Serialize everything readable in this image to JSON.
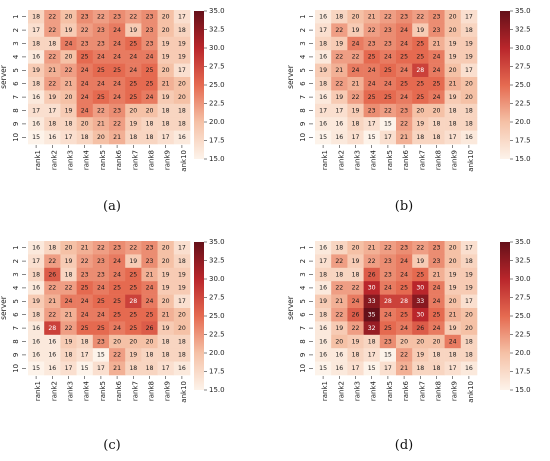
{
  "chart_data": [
    {
      "type": "heatmap",
      "panel_label": "(a)",
      "ylabel": "server",
      "x_ticks": [
        "rank1",
        "rank2",
        "rank3",
        "rank4",
        "rank5",
        "rank6",
        "rank7",
        "rank8",
        "rank9",
        "ank10"
      ],
      "y_ticks": [
        "1",
        "2",
        "3",
        "4",
        "5",
        "6",
        "7",
        "8",
        "9",
        "10"
      ],
      "colorbar_ticks": [
        "35.0",
        "32.5",
        "30.0",
        "27.5",
        "25.0",
        "22.5",
        "20.0",
        "17.5",
        "15.0"
      ],
      "vmin": 15,
      "vmax": 35,
      "values": [
        [
          18,
          22,
          20,
          23,
          22,
          23,
          22,
          23,
          20,
          17
        ],
        [
          17,
          22,
          19,
          22,
          23,
          24,
          19,
          23,
          20,
          18
        ],
        [
          18,
          18,
          24,
          23,
          23,
          24,
          25,
          23,
          19,
          19
        ],
        [
          16,
          22,
          20,
          25,
          24,
          24,
          24,
          24,
          19,
          19
        ],
        [
          19,
          21,
          22,
          24,
          25,
          25,
          24,
          25,
          20,
          17
        ],
        [
          18,
          22,
          21,
          24,
          24,
          24,
          25,
          25,
          21,
          20
        ],
        [
          16,
          19,
          20,
          24,
          25,
          24,
          25,
          24,
          19,
          20
        ],
        [
          17,
          17,
          19,
          24,
          22,
          23,
          20,
          20,
          18,
          18
        ],
        [
          16,
          18,
          18,
          20,
          21,
          22,
          19,
          18,
          18,
          18
        ],
        [
          15,
          16,
          17,
          18,
          20,
          21,
          18,
          18,
          17,
          16
        ]
      ]
    },
    {
      "type": "heatmap",
      "panel_label": "(b)",
      "ylabel": "server",
      "x_ticks": [
        "rank1",
        "rank2",
        "rank3",
        "rank4",
        "rank5",
        "rank6",
        "rank7",
        "rank8",
        "rank9",
        "ank10"
      ],
      "y_ticks": [
        "1",
        "2",
        "3",
        "4",
        "5",
        "6",
        "7",
        "8",
        "9",
        "10"
      ],
      "colorbar_ticks": [
        "35.0",
        "32.5",
        "30.0",
        "27.5",
        "25.0",
        "22.5",
        "20.0",
        "17.5",
        "15.0"
      ],
      "vmin": 15,
      "vmax": 35,
      "values": [
        [
          16,
          18,
          20,
          21,
          22,
          23,
          22,
          23,
          20,
          17
        ],
        [
          17,
          22,
          19,
          22,
          23,
          24,
          19,
          23,
          20,
          18
        ],
        [
          18,
          19,
          24,
          23,
          23,
          24,
          25,
          21,
          19,
          19
        ],
        [
          16,
          22,
          22,
          25,
          24,
          25,
          25,
          24,
          19,
          19
        ],
        [
          19,
          21,
          24,
          24,
          25,
          24,
          28,
          24,
          20,
          17
        ],
        [
          18,
          22,
          21,
          24,
          24,
          25,
          25,
          25,
          21,
          20
        ],
        [
          16,
          19,
          22,
          25,
          25,
          24,
          25,
          24,
          19,
          20
        ],
        [
          17,
          17,
          19,
          23,
          22,
          23,
          20,
          20,
          18,
          18
        ],
        [
          16,
          16,
          18,
          17,
          15,
          22,
          19,
          18,
          18,
          18
        ],
        [
          15,
          16,
          17,
          15,
          17,
          21,
          18,
          18,
          17,
          16
        ]
      ]
    },
    {
      "type": "heatmap",
      "panel_label": "(c)",
      "ylabel": "server",
      "x_ticks": [
        "rank1",
        "rank2",
        "rank3",
        "rank4",
        "rank5",
        "rank6",
        "rank7",
        "rank8",
        "rank9",
        "ank10"
      ],
      "y_ticks": [
        "1",
        "2",
        "3",
        "4",
        "5",
        "6",
        "7",
        "8",
        "9",
        "10"
      ],
      "colorbar_ticks": [
        "35.0",
        "32.5",
        "30.0",
        "27.5",
        "25.0",
        "22.5",
        "20.0",
        "17.5",
        "15.0"
      ],
      "vmin": 15,
      "vmax": 35,
      "values": [
        [
          16,
          18,
          20,
          21,
          22,
          23,
          22,
          23,
          20,
          17
        ],
        [
          17,
          22,
          19,
          22,
          23,
          24,
          19,
          23,
          20,
          18
        ],
        [
          18,
          26,
          18,
          23,
          23,
          24,
          25,
          21,
          19,
          19
        ],
        [
          16,
          22,
          22,
          25,
          24,
          25,
          25,
          24,
          19,
          19
        ],
        [
          19,
          21,
          24,
          24,
          25,
          25,
          28,
          24,
          20,
          17
        ],
        [
          18,
          22,
          21,
          24,
          24,
          25,
          25,
          25,
          21,
          20
        ],
        [
          16,
          28,
          22,
          25,
          25,
          24,
          25,
          26,
          19,
          20
        ],
        [
          16,
          16,
          19,
          18,
          23,
          20,
          20,
          20,
          18,
          18
        ],
        [
          16,
          16,
          18,
          17,
          15,
          22,
          19,
          18,
          18,
          18
        ],
        [
          15,
          16,
          17,
          15,
          17,
          21,
          18,
          18,
          17,
          16
        ]
      ]
    },
    {
      "type": "heatmap",
      "panel_label": "(d)",
      "ylabel": "server",
      "x_ticks": [
        "rank1",
        "rank2",
        "rank3",
        "rank4",
        "rank5",
        "rank6",
        "rank7",
        "rank8",
        "rank9",
        "ank10"
      ],
      "y_ticks": [
        "1",
        "2",
        "3",
        "4",
        "5",
        "6",
        "7",
        "8",
        "9",
        "10"
      ],
      "colorbar_ticks": [
        "35.0",
        "32.5",
        "30.0",
        "27.5",
        "25.0",
        "22.5",
        "20.0",
        "17.5",
        "15.0"
      ],
      "vmin": 15,
      "vmax": 35,
      "values": [
        [
          16,
          18,
          20,
          21,
          22,
          23,
          22,
          23,
          20,
          17
        ],
        [
          17,
          22,
          19,
          22,
          23,
          24,
          19,
          23,
          20,
          18
        ],
        [
          18,
          18,
          18,
          26,
          23,
          24,
          25,
          21,
          19,
          19
        ],
        [
          16,
          22,
          22,
          30,
          24,
          25,
          30,
          24,
          19,
          19
        ],
        [
          19,
          21,
          24,
          33,
          28,
          28,
          33,
          24,
          20,
          17
        ],
        [
          18,
          22,
          26,
          35,
          24,
          25,
          30,
          25,
          21,
          20
        ],
        [
          16,
          19,
          22,
          32,
          25,
          24,
          26,
          24,
          19,
          20
        ],
        [
          16,
          20,
          19,
          18,
          23,
          20,
          20,
          20,
          24,
          18
        ],
        [
          16,
          16,
          18,
          17,
          15,
          22,
          19,
          18,
          18,
          18
        ],
        [
          15,
          16,
          17,
          15,
          17,
          21,
          18,
          18,
          17,
          16
        ]
      ]
    }
  ]
}
